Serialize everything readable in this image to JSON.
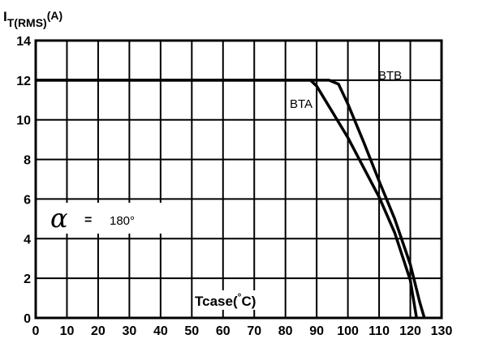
{
  "chart_data": {
    "type": "line",
    "title": "",
    "ylabel": {
      "main": "I",
      "sub": "T(RMS)",
      "unit": "(A)"
    },
    "xlabel": {
      "prefix": "Tcase",
      "open": "(",
      "degree": "°",
      "unit": "C)"
    },
    "xlim": [
      0,
      130
    ],
    "ylim": [
      0,
      14
    ],
    "x_ticks": [
      "0",
      "10",
      "20",
      "30",
      "40",
      "50",
      "60",
      "70",
      "80",
      "90",
      "100",
      "110",
      "120",
      "130"
    ],
    "y_ticks": [
      "0",
      "2",
      "4",
      "6",
      "8",
      "10",
      "12",
      "14"
    ],
    "grid": true,
    "series": [
      {
        "name": "BTA",
        "x": [
          0,
          88,
          90,
          95,
          100,
          105,
          110,
          115,
          120,
          122
        ],
        "y": [
          12,
          12,
          11.7,
          10.4,
          9.1,
          7.6,
          6.1,
          4.3,
          1.9,
          0
        ]
      },
      {
        "name": "BTB",
        "x": [
          0,
          94,
          97,
          100,
          105,
          110,
          115,
          120,
          123,
          124.5
        ],
        "y": [
          12,
          12,
          11.8,
          10.8,
          8.9,
          6.9,
          5.0,
          2.7,
          0.8,
          0
        ]
      }
    ],
    "annotation": {
      "symbol": "α",
      "equals": "=",
      "value": "180°"
    }
  }
}
